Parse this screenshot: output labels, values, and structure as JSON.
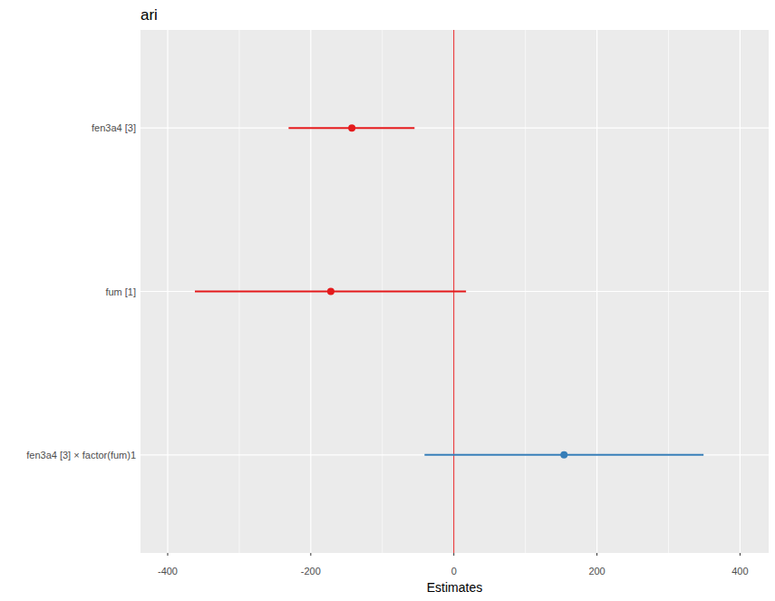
{
  "chart_data": {
    "type": "forest",
    "title": "ari",
    "x_label": "Estimates",
    "categories": [
      "fen3a4 [3]",
      "fum [1]",
      "fen3a4 [3] × factor(fum)1"
    ],
    "values": [
      -142.6,
      -172,
      154
    ],
    "ci_low": [
      -231,
      -362,
      -41
    ],
    "ci_high": [
      -55,
      17,
      349
    ],
    "colors": [
      "#e41a1c",
      "#e41a1c",
      "#377eb8"
    ],
    "vline": 0,
    "xlim": [
      -438,
      440
    ],
    "xticks": [
      -400,
      -200,
      0,
      200,
      400
    ],
    "orientation": "horizontal",
    "grid": true
  }
}
